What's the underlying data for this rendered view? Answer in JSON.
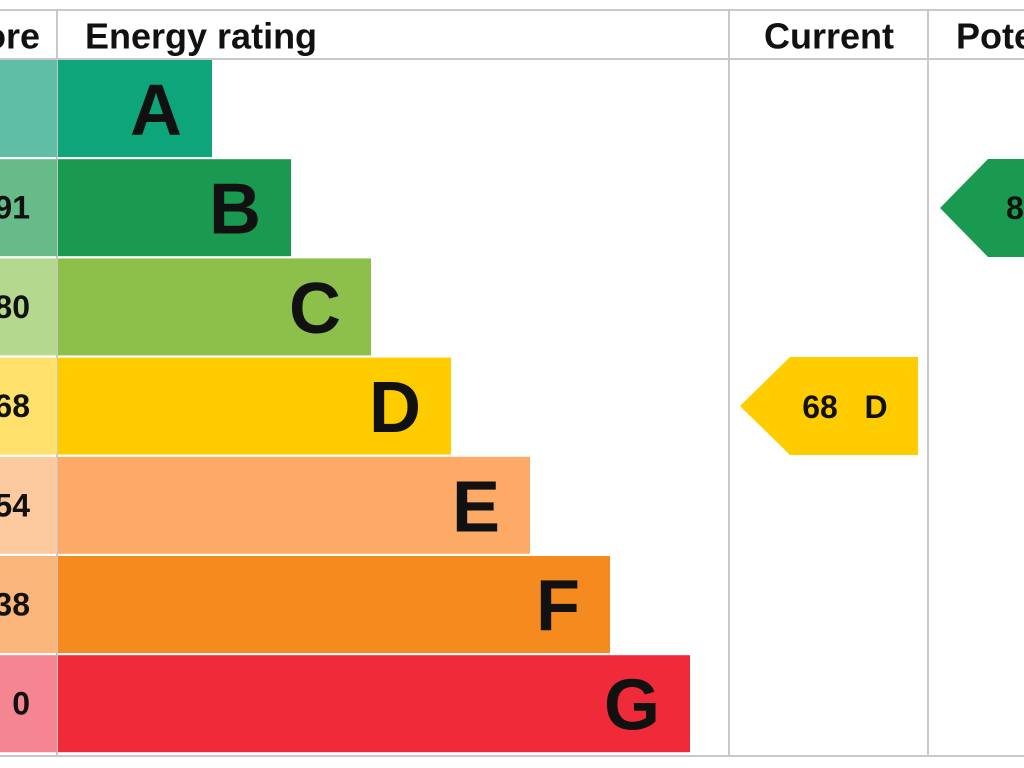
{
  "header": {
    "score": "ore",
    "rating": "Energy rating",
    "current": "Current",
    "potential": "Pote"
  },
  "bands": [
    {
      "letter": "A"
    },
    {
      "score": "91",
      "letter": "B"
    },
    {
      "score": "80",
      "letter": "C"
    },
    {
      "score": "68",
      "letter": "D"
    },
    {
      "score": "54",
      "letter": "E"
    },
    {
      "score": "38",
      "letter": "F"
    },
    {
      "score": "0",
      "letter": "G"
    }
  ],
  "current": {
    "score": "68",
    "band": "D"
  },
  "potential": {
    "score": "8"
  }
}
